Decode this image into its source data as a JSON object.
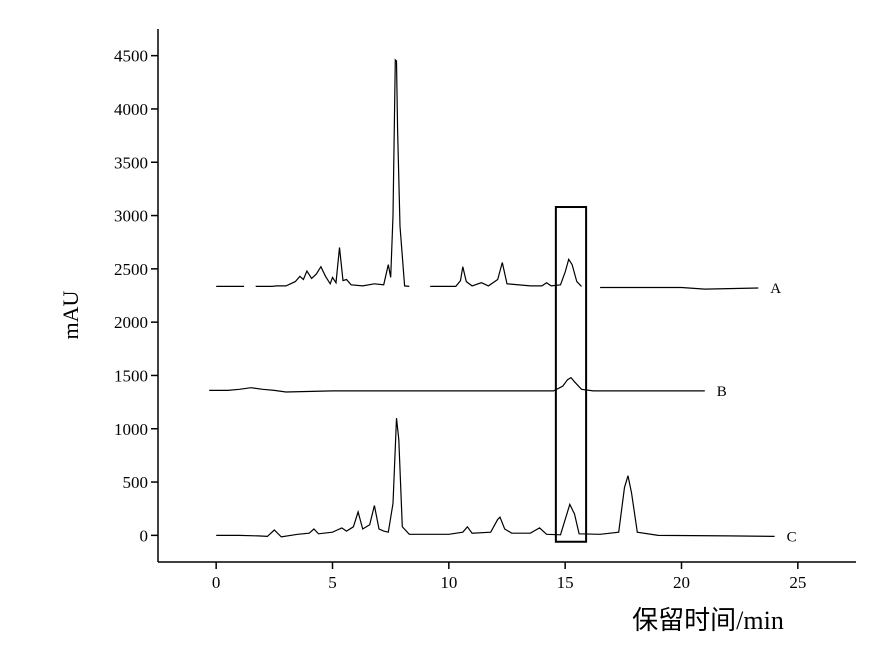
{
  "chart_data": {
    "type": "line",
    "y_label": "mAU",
    "x_label": "保留时间/min",
    "xlim": [
      -2.5,
      27.5
    ],
    "ylim": [
      -250,
      4750
    ],
    "xticks": [
      0,
      5,
      10,
      15,
      20,
      25
    ],
    "yticks": [
      0,
      500,
      1000,
      1500,
      2000,
      2500,
      3000,
      3500,
      4000,
      4500
    ],
    "highlight_box": {
      "x": [
        14.6,
        15.9
      ],
      "y": [
        -60,
        3080
      ]
    },
    "series": [
      {
        "name": "A",
        "color": "#000000",
        "x": [
          0,
          1.2,
          1.3,
          1.7,
          2.4,
          2.6,
          3.0,
          3.4,
          3.6,
          3.75,
          3.9,
          4.1,
          4.3,
          4.5,
          4.7,
          4.9,
          5.0,
          5.15,
          5.3,
          5.45,
          5.6,
          5.8,
          6.3,
          6.8,
          7.2,
          7.4,
          7.5,
          7.6,
          7.7,
          7.75,
          7.8,
          7.9,
          8.1,
          8.3,
          8.6,
          9.2,
          10.3,
          10.5,
          10.6,
          10.75,
          11.0,
          11.4,
          11.7,
          12.1,
          12.3,
          12.5,
          13.5,
          14.0,
          14.2,
          14.4,
          14.8,
          15.0,
          15.15,
          15.3,
          15.5,
          15.7,
          16.2,
          16.5,
          20.0,
          21.0,
          23.3
        ],
        "values": [
          2335,
          2335,
          null,
          2335,
          2335,
          2340,
          2340,
          2380,
          2430,
          2400,
          2480,
          2410,
          2450,
          2520,
          2430,
          2360,
          2420,
          2370,
          2700,
          2390,
          2400,
          2350,
          2340,
          2360,
          2350,
          2540,
          2420,
          3000,
          4460,
          4450,
          3800,
          2900,
          2340,
          2335,
          null,
          2335,
          2335,
          2390,
          2520,
          2380,
          2340,
          2370,
          2340,
          2400,
          2560,
          2360,
          2340,
          2340,
          2370,
          2340,
          2350,
          2470,
          2590,
          2540,
          2380,
          2335,
          null,
          2325,
          2325,
          2310,
          2320
        ]
      },
      {
        "name": "B",
        "color": "#000000",
        "x": [
          -0.3,
          0.5,
          1.0,
          1.5,
          2.0,
          2.5,
          3.0,
          5,
          8,
          12,
          14.5,
          14.9,
          15.1,
          15.25,
          15.4,
          15.7,
          16.2,
          21.0
        ],
        "values": [
          1360,
          1360,
          1370,
          1385,
          1370,
          1360,
          1345,
          1355,
          1355,
          1355,
          1355,
          1400,
          1460,
          1480,
          1440,
          1370,
          1355,
          1355
        ]
      },
      {
        "name": "C",
        "color": "#000000",
        "x": [
          0,
          1.0,
          1.8,
          2.2,
          2.5,
          2.8,
          3.5,
          4.0,
          4.2,
          4.4,
          5.0,
          5.2,
          5.4,
          5.6,
          5.9,
          6.1,
          6.3,
          6.6,
          6.8,
          7.0,
          7.2,
          7.4,
          7.6,
          7.75,
          7.85,
          8.0,
          8.3,
          10.0,
          10.6,
          10.8,
          11.0,
          11.8,
          12.1,
          12.2,
          12.4,
          12.7,
          13.5,
          13.9,
          14.2,
          14.8,
          15.0,
          15.2,
          15.4,
          15.6,
          16.5,
          17.3,
          17.55,
          17.7,
          17.85,
          18.1,
          19.0,
          22.0,
          24.0
        ],
        "values": [
          0,
          0,
          -5,
          -10,
          50,
          -15,
          10,
          20,
          60,
          15,
          30,
          50,
          70,
          40,
          80,
          220,
          60,
          100,
          280,
          60,
          40,
          30,
          300,
          1100,
          900,
          80,
          10,
          10,
          30,
          80,
          20,
          30,
          150,
          170,
          60,
          20,
          20,
          70,
          10,
          5,
          150,
          290,
          200,
          15,
          10,
          30,
          450,
          560,
          400,
          30,
          0,
          -5,
          -10
        ]
      }
    ]
  }
}
